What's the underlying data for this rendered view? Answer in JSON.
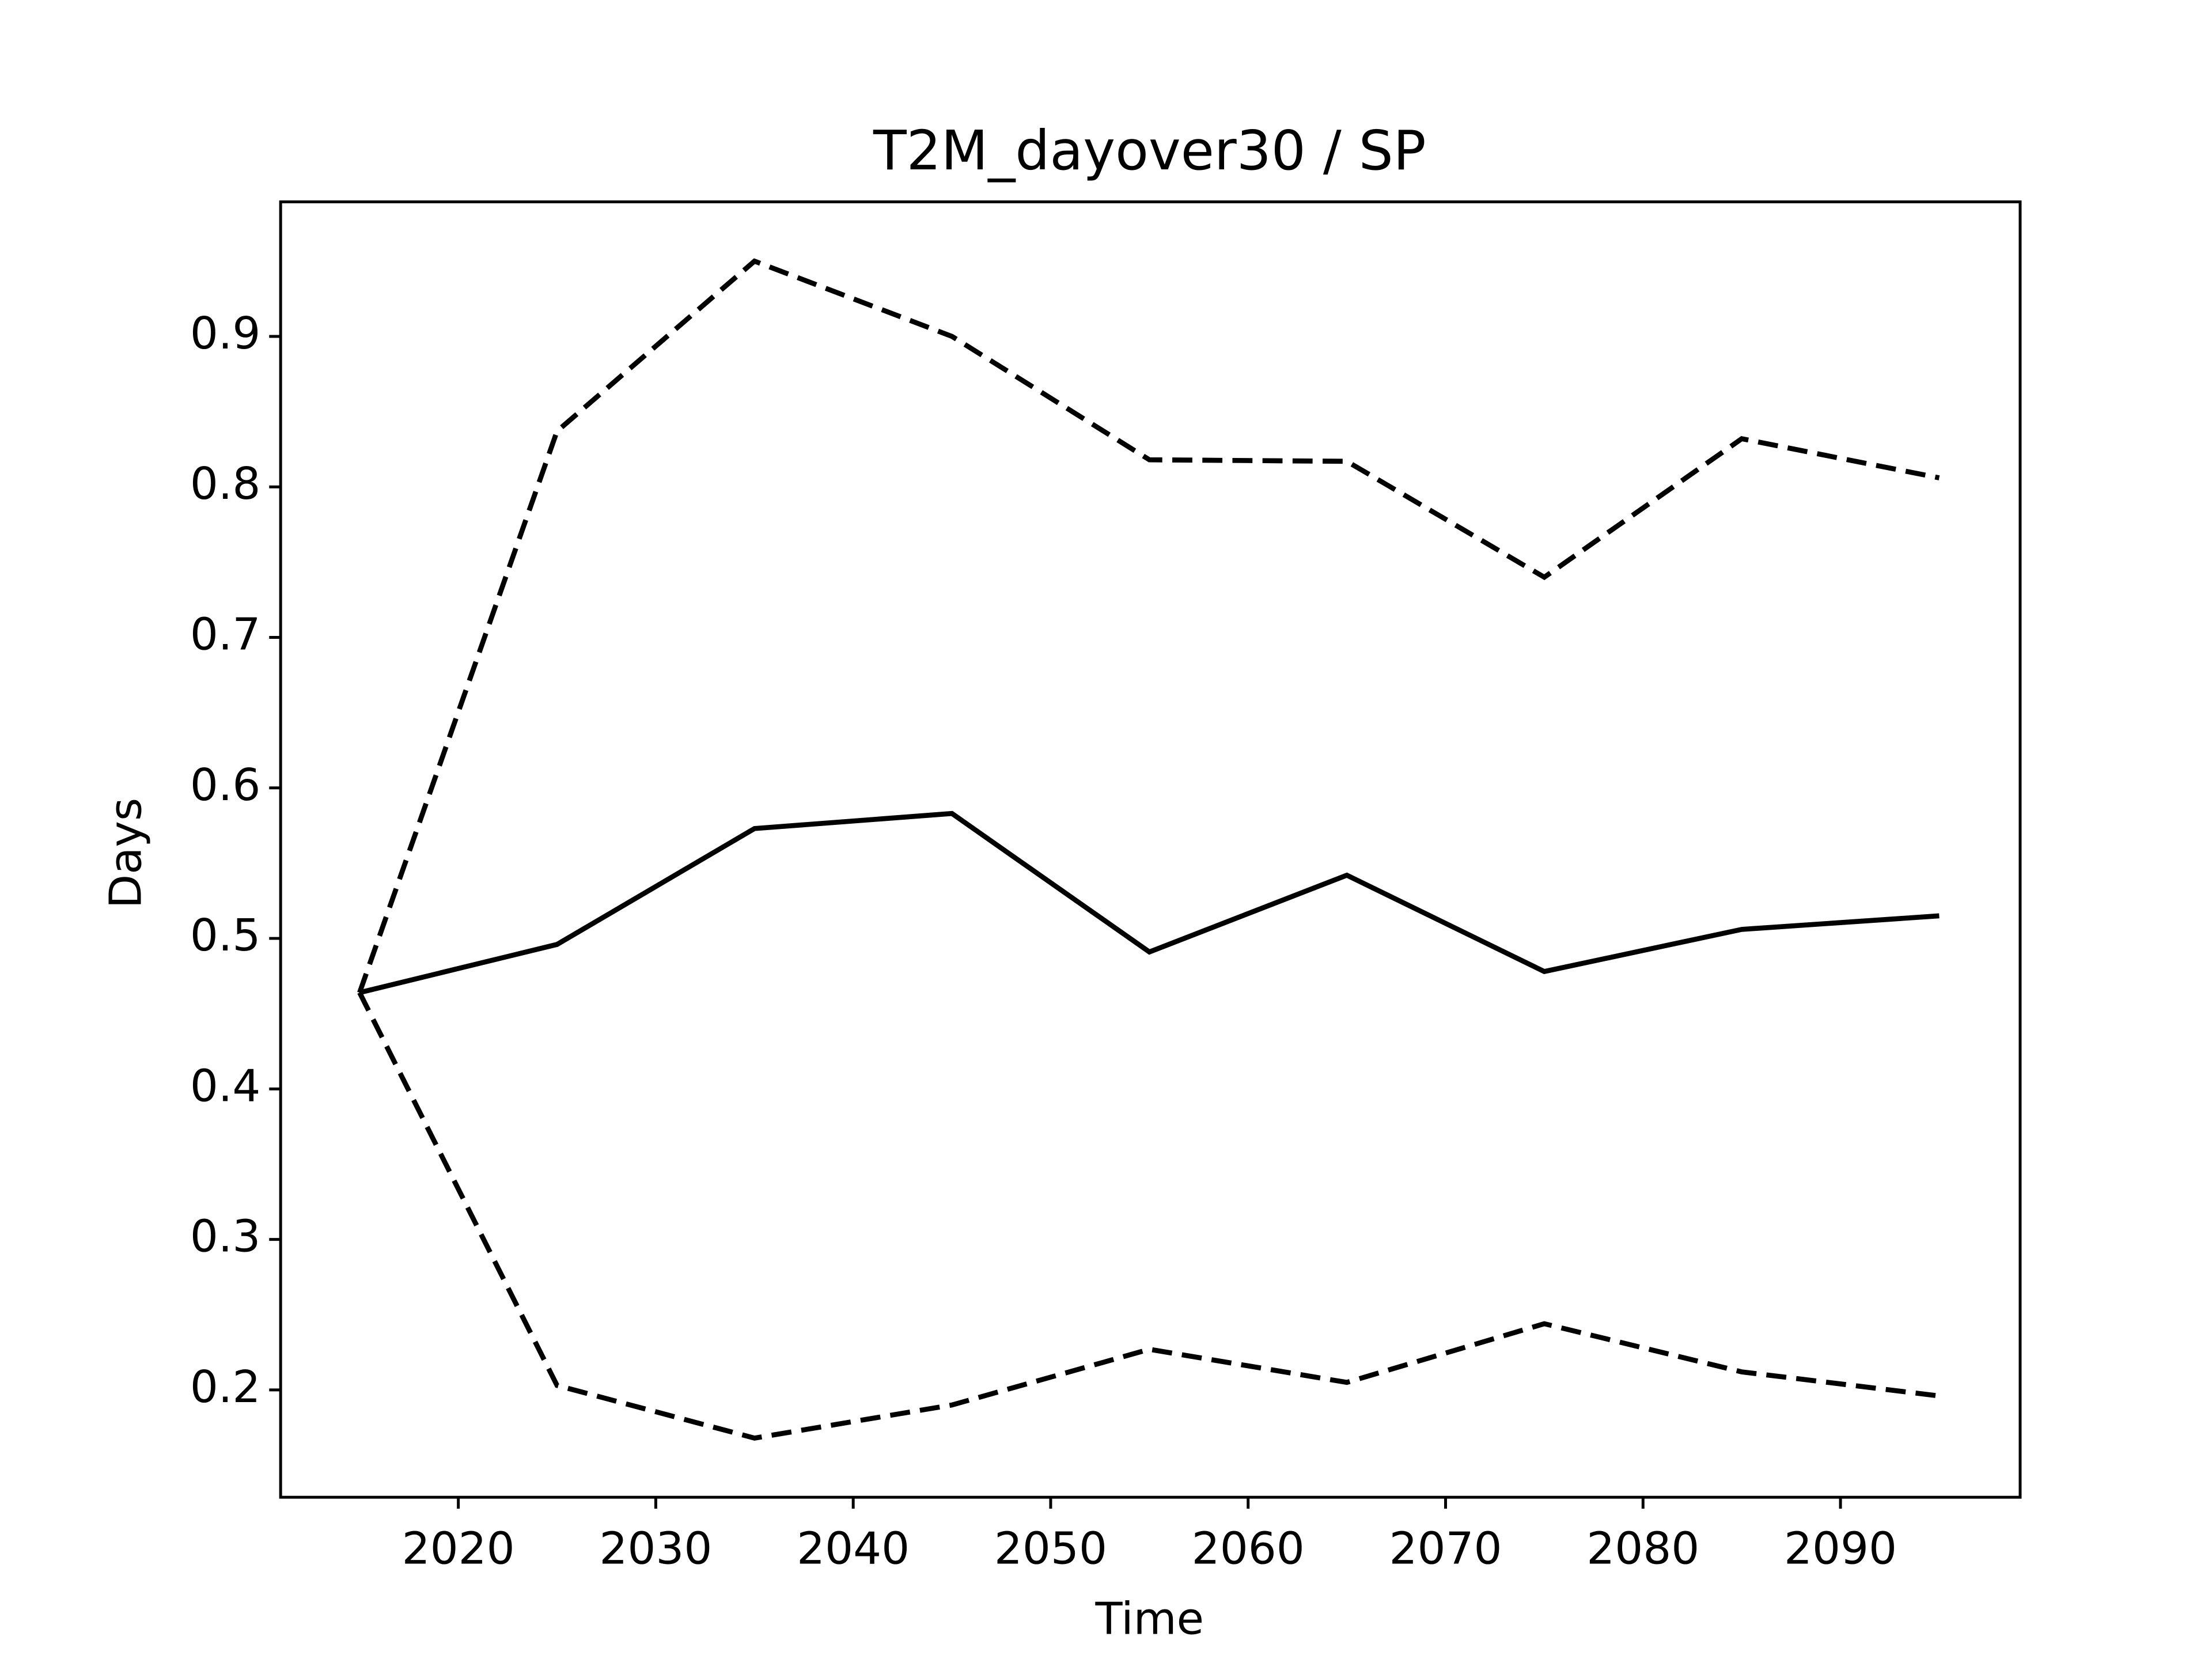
{
  "chart_data": {
    "type": "line",
    "title": "T2M_dayover30 / SP",
    "x_label": "Time",
    "y_label": "Days",
    "x": [
      2015,
      2025,
      2035,
      2045,
      2055,
      2065,
      2075,
      2085,
      2095
    ],
    "series": [
      {
        "color": "#000000",
        "dash": "solid",
        "values": [
          0.464,
          0.496,
          0.573,
          0.583,
          0.491,
          0.542,
          0.478,
          0.506,
          0.515
        ]
      },
      {
        "color": "#000000",
        "dash": "dashed",
        "values": [
          0.464,
          0.837,
          0.95,
          0.9,
          0.818,
          0.817,
          0.74,
          0.832,
          0.806
        ]
      },
      {
        "color": "#000000",
        "dash": "dashed",
        "values": [
          0.464,
          0.203,
          0.168,
          0.19,
          0.227,
          0.205,
          0.244,
          0.212,
          0.196
        ]
      }
    ],
    "xlim": [
      2011.0,
      2099.1
    ],
    "xticks": [
      2020,
      2030,
      2040,
      2050,
      2060,
      2070,
      2080,
      2090
    ],
    "ylim": [
      0.1287,
      0.9894
    ],
    "yticks": [
      {
        "value": 0.2,
        "label": "0.2"
      },
      {
        "value": 0.3,
        "label": "0.3"
      },
      {
        "value": 0.4,
        "label": "0.4"
      },
      {
        "value": 0.5,
        "label": "0.5"
      },
      {
        "value": 0.6,
        "label": "0.6"
      },
      {
        "value": 0.7,
        "label": "0.7"
      },
      {
        "value": 0.8,
        "label": "0.8"
      },
      {
        "value": 0.9,
        "label": "0.9"
      }
    ],
    "grid": false
  }
}
